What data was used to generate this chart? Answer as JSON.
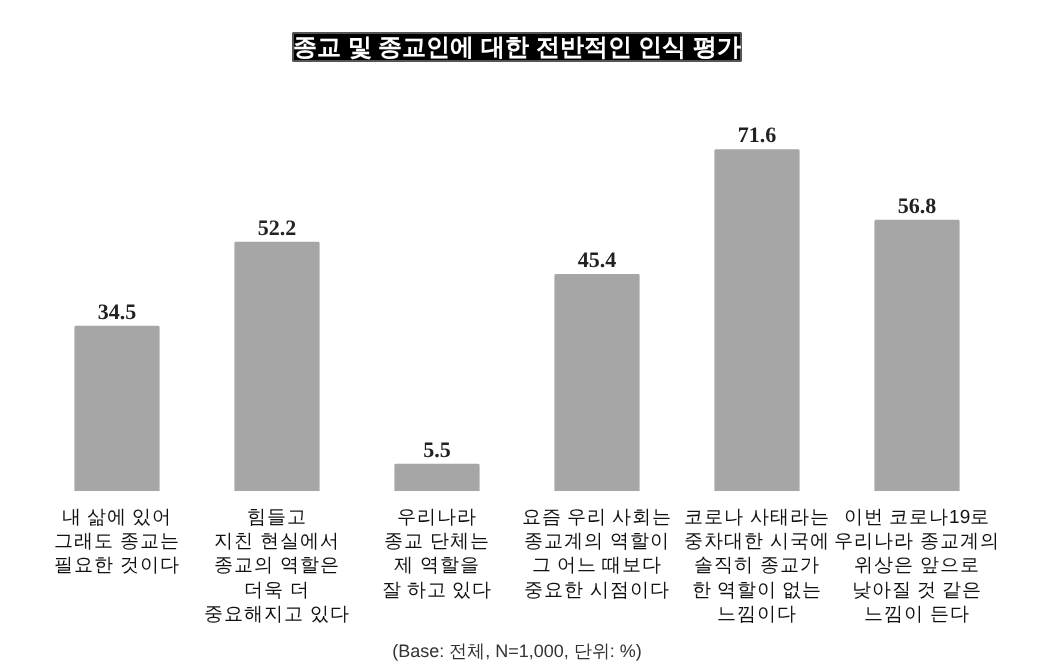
{
  "chart_data": {
    "type": "bar",
    "title": "종교 및 종교인에 대한 전반적인 인식 평가",
    "categories": [
      "내 삶에 있어\n그래도 종교는\n필요한 것이다",
      "힘들고\n지친 현실에서\n종교의 역할은\n더욱 더\n중요해지고 있다",
      "우리나라\n종교 단체는\n제 역할을\n잘 하고 있다",
      "요즘 우리 사회는\n종교계의 역할이\n그 어느 때보다\n중요한 시점이다",
      "코로나 사태라는\n중차대한 시국에\n솔직히 종교가\n한 역할이 없는\n느낌이다",
      "이번 코로나19로\n우리나라 종교계의\n위상은 앞으로\n낮아질 것 같은\n느낌이 든다"
    ],
    "values": [
      34.5,
      52.2,
      5.5,
      45.4,
      71.6,
      56.8
    ],
    "color": "#a6a6a6",
    "data_labels": true,
    "annotations": [
      "(Base: 전체, N=1,000, 단위: %)"
    ]
  }
}
